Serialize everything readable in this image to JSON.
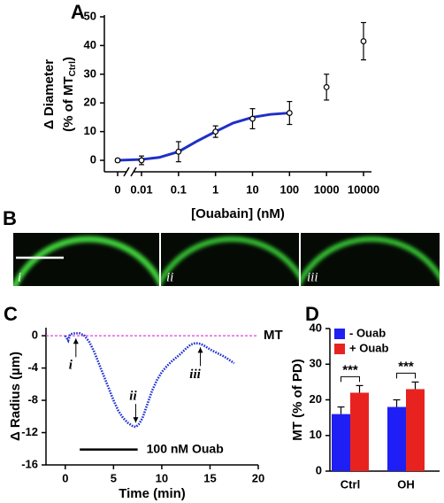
{
  "chart_data": [
    {
      "type": "scatter",
      "panel_label": "A",
      "ylabel": "Δ Diameter",
      "ylabel_unit": {
        "text": "(% of MT",
        "sub": "Ctrl",
        "end": ")"
      },
      "xlabel": "[Ouabain] (nM)",
      "xscale": "log",
      "axis_break": true,
      "x": [
        0,
        0.01,
        0.1,
        1,
        10,
        100,
        1000,
        10000
      ],
      "values": [
        0,
        0,
        3,
        10,
        14.5,
        16.5,
        25.5,
        41.5
      ],
      "errors": [
        0.5,
        1.5,
        3.5,
        2,
        3.5,
        4,
        4.5,
        6.5
      ],
      "marker_color": "#000000",
      "fit": {
        "color": "#1f2fc8",
        "x": [
          0,
          0.01,
          0.03,
          0.1,
          0.3,
          1,
          3,
          10,
          30,
          100
        ],
        "values": [
          0,
          0.3,
          1,
          3,
          6.5,
          10,
          13,
          15,
          16,
          16.5
        ]
      },
      "xlim": [
        0.01,
        10000
      ],
      "xticks": [
        0,
        0.01,
        0.1,
        1,
        10,
        100,
        1000,
        10000
      ],
      "ylim": [
        -4,
        50
      ],
      "yticks": [
        0,
        10,
        20,
        30,
        40,
        50
      ]
    },
    {
      "type": "line",
      "panel_label": "C",
      "xlabel": "Time (min)",
      "ylabel": "Δ Radius (µm)",
      "color": "#1a2fd0",
      "x": [
        0,
        0.3,
        0.5,
        1,
        1.5,
        2,
        2.5,
        3,
        3.5,
        4,
        4.5,
        5,
        5.5,
        6,
        6.5,
        7,
        7.3,
        7.6,
        8,
        8.5,
        9,
        9.5,
        10,
        10.5,
        11,
        11.5,
        12,
        12.5,
        13,
        13.5,
        14,
        14.5,
        15,
        15.5,
        16,
        16.5,
        17,
        17.5
      ],
      "values": [
        0,
        -0.6,
        0.2,
        0.3,
        0.3,
        0,
        -0.8,
        -2,
        -3.5,
        -5,
        -6.5,
        -8,
        -9.3,
        -10.2,
        -10.8,
        -11.2,
        -11.3,
        -11,
        -10.2,
        -8.5,
        -6.8,
        -5.5,
        -4.5,
        -3.8,
        -3.2,
        -2.7,
        -2.2,
        -1.6,
        -1.1,
        -0.9,
        -1,
        -1.3,
        -1.7,
        -2,
        -2.3,
        -2.6,
        -3,
        -3.4
      ],
      "reference_line": {
        "value": 0,
        "label": "MT",
        "color": "#e040e0"
      },
      "annotations": [
        {
          "text": "i",
          "x": 1.1,
          "y": 0.2
        },
        {
          "text": "ii",
          "x": 7.3,
          "y": -11.3
        },
        {
          "text": "iii",
          "x": 14,
          "y": -0.9
        }
      ],
      "treatment": {
        "label": "100 nM Ouab",
        "start": 1.5,
        "end": 7.5,
        "y": -14.1
      },
      "xlim": [
        -2,
        20
      ],
      "xticks": [
        0,
        5,
        10,
        15,
        20
      ],
      "ylim": [
        -16,
        1
      ],
      "yticks": [
        0,
        -4,
        -8,
        -12,
        -16
      ]
    },
    {
      "type": "bar",
      "panel_label": "D",
      "ylabel": "MT (% of PD)",
      "categories": [
        "Ctrl",
        "OH"
      ],
      "series": [
        {
          "name": "- Ouab",
          "color": "#1f1ff5",
          "values": [
            16,
            18
          ],
          "errors": [
            2,
            2
          ]
        },
        {
          "name": "+ Ouab",
          "color": "#e8231f",
          "values": [
            22,
            23
          ],
          "errors": [
            2,
            2
          ]
        }
      ],
      "significance": [
        "***",
        "***"
      ],
      "legend": "top-left",
      "ylim": [
        0,
        40
      ],
      "yticks": [
        0,
        10,
        20,
        30,
        40
      ]
    }
  ],
  "micrographs": {
    "panel_label": "B",
    "labels": [
      "i",
      "ii",
      "iii"
    ]
  }
}
